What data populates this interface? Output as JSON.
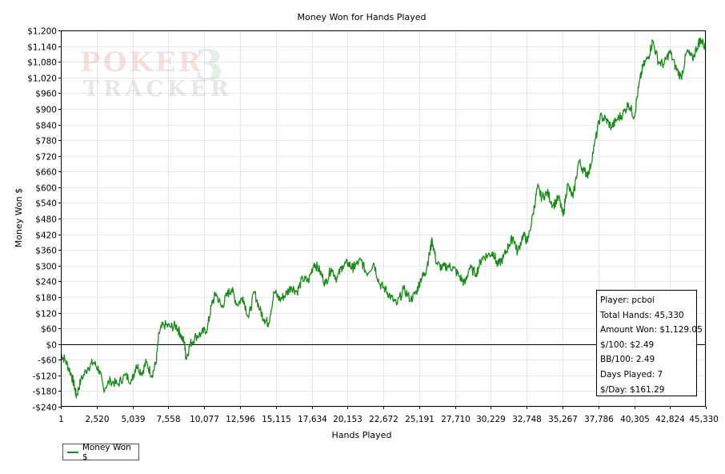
{
  "watermark": {
    "line1": "POKER",
    "line2": "TRACKER",
    "number": "3"
  },
  "legend": {
    "label": "Money Won $",
    "color": "#1a8a1a"
  },
  "stats": {
    "player": "Player: pcboi",
    "total_hands": "Total Hands: 45,330",
    "amount_won": "Amount Won: $1,129.05",
    "per100": "$/100: $2.49",
    "bb100": "BB/100: 2.49",
    "days_played": "Days Played: 7",
    "per_day": "$/Day: $161.29"
  },
  "chart_data": {
    "type": "line",
    "title": "Money Won for Hands Played",
    "xlabel": "Hands Played",
    "ylabel": "Money Won $",
    "xlim": [
      1,
      45330
    ],
    "ylim": [
      -240,
      1200
    ],
    "x_ticks": [
      1,
      2520,
      5039,
      7558,
      10077,
      12596,
      15115,
      17634,
      20153,
      22672,
      25191,
      27710,
      30229,
      32748,
      35267,
      37786,
      40305,
      42824,
      45330
    ],
    "x_tick_labels": [
      "1",
      "2,520",
      "5,039",
      "7,558",
      "10,077",
      "12,596",
      "15,115",
      "17,634",
      "20,153",
      "22,672",
      "25,191",
      "27,710",
      "30,229",
      "32,748",
      "35,267",
      "37,786",
      "40,305",
      "42,824",
      "45,330"
    ],
    "y_ticks": [
      -240,
      -180,
      -120,
      -60,
      0,
      60,
      120,
      180,
      240,
      300,
      360,
      420,
      480,
      540,
      600,
      660,
      720,
      780,
      840,
      900,
      960,
      1020,
      1080,
      1140,
      1200
    ],
    "y_tick_labels": [
      "-$240",
      "-$180",
      "-$120",
      "-$60",
      "$0",
      "$60",
      "$120",
      "$180",
      "$240",
      "$300",
      "$360",
      "$420",
      "$480",
      "$540",
      "$600",
      "$660",
      "$720",
      "$780",
      "$840",
      "$900",
      "$960",
      "$1,020",
      "$1,080",
      "$1,140",
      "$1,200"
    ],
    "grid": true,
    "zero_line": true,
    "legend_position": "bottom-left",
    "series": [
      {
        "name": "Money Won $",
        "color": "#1a8a1a",
        "points": [
          [
            1,
            -40
          ],
          [
            300,
            -60
          ],
          [
            700,
            -110
          ],
          [
            950,
            -160
          ],
          [
            1100,
            -200
          ],
          [
            1400,
            -140
          ],
          [
            1900,
            -90
          ],
          [
            2300,
            -70
          ],
          [
            2700,
            -100
          ],
          [
            3000,
            -170
          ],
          [
            3500,
            -140
          ],
          [
            4000,
            -155
          ],
          [
            4500,
            -120
          ],
          [
            5000,
            -140
          ],
          [
            5300,
            -80
          ],
          [
            5700,
            -110
          ],
          [
            6000,
            -70
          ],
          [
            6400,
            -120
          ],
          [
            6700,
            -70
          ],
          [
            6900,
            40
          ],
          [
            7200,
            75
          ],
          [
            7700,
            65
          ],
          [
            8100,
            70
          ],
          [
            8400,
            40
          ],
          [
            8700,
            0
          ],
          [
            8800,
            -55
          ],
          [
            9100,
            0
          ],
          [
            9500,
            30
          ],
          [
            9900,
            40
          ],
          [
            10300,
            60
          ],
          [
            10600,
            150
          ],
          [
            10900,
            195
          ],
          [
            11300,
            140
          ],
          [
            11700,
            190
          ],
          [
            12000,
            210
          ],
          [
            12400,
            150
          ],
          [
            12800,
            180
          ],
          [
            13200,
            100
          ],
          [
            13600,
            200
          ],
          [
            14000,
            130
          ],
          [
            14300,
            95
          ],
          [
            14600,
            80
          ],
          [
            15000,
            200
          ],
          [
            15400,
            170
          ],
          [
            15800,
            190
          ],
          [
            16200,
            220
          ],
          [
            16600,
            200
          ],
          [
            17000,
            250
          ],
          [
            17400,
            240
          ],
          [
            17800,
            310
          ],
          [
            18200,
            280
          ],
          [
            18600,
            230
          ],
          [
            19000,
            290
          ],
          [
            19400,
            250
          ],
          [
            19800,
            300
          ],
          [
            20200,
            310
          ],
          [
            20500,
            290
          ],
          [
            20700,
            300
          ],
          [
            21100,
            320
          ],
          [
            21500,
            270
          ],
          [
            22000,
            310
          ],
          [
            22400,
            230
          ],
          [
            22800,
            210
          ],
          [
            23200,
            180
          ],
          [
            23600,
            150
          ],
          [
            24100,
            210
          ],
          [
            24600,
            170
          ],
          [
            25000,
            200
          ],
          [
            25300,
            250
          ],
          [
            25600,
            270
          ],
          [
            25900,
            340
          ],
          [
            26100,
            400
          ],
          [
            26400,
            310
          ],
          [
            26800,
            290
          ],
          [
            27200,
            300
          ],
          [
            27600,
            290
          ],
          [
            28000,
            260
          ],
          [
            28400,
            230
          ],
          [
            28700,
            290
          ],
          [
            29200,
            270
          ],
          [
            29600,
            330
          ],
          [
            30000,
            340
          ],
          [
            30400,
            350
          ],
          [
            30700,
            300
          ],
          [
            31100,
            330
          ],
          [
            31500,
            380
          ],
          [
            31800,
            410
          ],
          [
            32100,
            350
          ],
          [
            32500,
            420
          ],
          [
            32800,
            390
          ],
          [
            33200,
            500
          ],
          [
            33500,
            600
          ],
          [
            33800,
            560
          ],
          [
            34200,
            580
          ],
          [
            34600,
            530
          ],
          [
            35000,
            560
          ],
          [
            35300,
            490
          ],
          [
            35600,
            610
          ],
          [
            36000,
            560
          ],
          [
            36400,
            700
          ],
          [
            36800,
            660
          ],
          [
            37100,
            650
          ],
          [
            37500,
            760
          ],
          [
            37900,
            870
          ],
          [
            38300,
            860
          ],
          [
            38700,
            830
          ],
          [
            39100,
            860
          ],
          [
            39500,
            880
          ],
          [
            39900,
            920
          ],
          [
            40300,
            870
          ],
          [
            40600,
            980
          ],
          [
            40900,
            1060
          ],
          [
            41300,
            1100
          ],
          [
            41600,
            1160
          ],
          [
            42000,
            1080
          ],
          [
            42400,
            1070
          ],
          [
            42800,
            1120
          ],
          [
            43200,
            1060
          ],
          [
            43600,
            1020
          ],
          [
            44000,
            1120
          ],
          [
            44400,
            1090
          ],
          [
            44800,
            1150
          ],
          [
            45000,
            1165
          ],
          [
            45330,
            1130
          ]
        ]
      }
    ]
  }
}
